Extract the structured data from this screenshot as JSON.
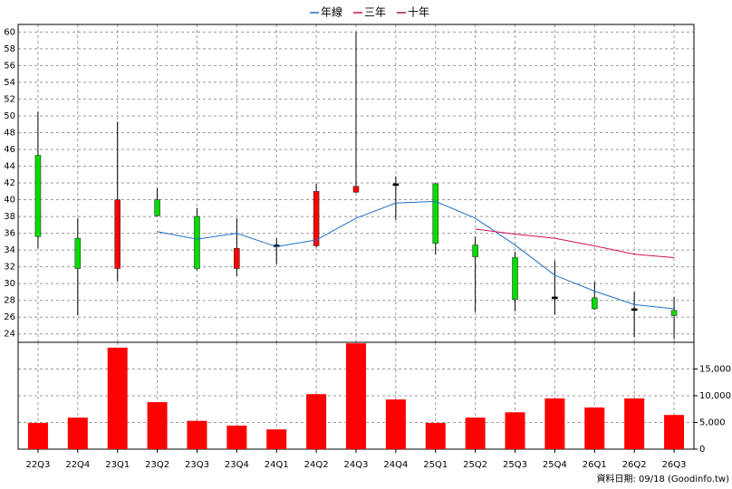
{
  "chart_data": [
    {
      "type": "candlestick",
      "categories": [
        "22Q3",
        "22Q4",
        "23Q1",
        "23Q2",
        "23Q3",
        "23Q4",
        "24Q1",
        "24Q2",
        "24Q3",
        "24Q4",
        "25Q1",
        "25Q2",
        "25Q3",
        "25Q4",
        "26Q1",
        "26Q2",
        "26Q3"
      ],
      "open": [
        45.3,
        35.4,
        31.8,
        40.0,
        38.0,
        31.8,
        34.5,
        34.5,
        40.9,
        41.8,
        41.9,
        34.6,
        33.1,
        28.3,
        28.3,
        26.9,
        26.8
      ],
      "high": [
        50.5,
        37.8,
        49.3,
        41.4,
        39.0,
        37.8,
        35.4,
        41.9,
        60.0,
        42.8,
        42.0,
        35.6,
        33.8,
        32.7,
        30.2,
        29.0,
        28.4
      ],
      "low": [
        34.2,
        26.2,
        30.3,
        38.0,
        31.6,
        30.9,
        32.3,
        34.3,
        40.8,
        37.6,
        33.5,
        26.6,
        26.7,
        26.3,
        26.9,
        23.6,
        23.4
      ],
      "close": [
        35.6,
        31.8,
        40.0,
        38.1,
        31.8,
        34.2,
        34.5,
        41.0,
        41.6,
        41.8,
        34.8,
        33.2,
        28.1,
        28.3,
        27.0,
        26.9,
        26.2
      ],
      "up_color": "#ff0000",
      "down_color": "#00dd00",
      "flat_color": "#000000",
      "series": [
        {
          "name": "年線",
          "color": "#1f6fc8",
          "values": [
            null,
            null,
            null,
            36.2,
            35.3,
            36.0,
            34.4,
            35.2,
            37.8,
            39.6,
            39.8,
            37.8,
            34.6,
            31.0,
            29.1,
            27.5,
            27.0
          ]
        },
        {
          "name": "三年",
          "color": "#d0105a",
          "values": [
            null,
            null,
            null,
            null,
            null,
            null,
            null,
            null,
            null,
            null,
            null,
            36.5,
            35.9,
            35.4,
            34.5,
            33.5,
            33.1
          ]
        },
        {
          "name": "十年",
          "color": "#9a1a60",
          "values": [
            null,
            null,
            null,
            null,
            null,
            null,
            null,
            null,
            null,
            null,
            null,
            null,
            null,
            null,
            null,
            null,
            null
          ]
        }
      ],
      "ylim": [
        23,
        60.9
      ],
      "yticks": [
        24,
        26,
        28,
        30,
        32,
        34,
        36,
        38,
        40,
        42,
        44,
        46,
        48,
        50,
        52,
        54,
        56,
        58,
        60
      ],
      "grid": true
    },
    {
      "type": "bar",
      "values": [
        4900,
        5900,
        19000,
        8800,
        5300,
        4400,
        3700,
        10300,
        19800,
        9300,
        4900,
        5900,
        6900,
        9500,
        7800,
        9500,
        6400
      ],
      "color": "#ff0000",
      "ylim": [
        0,
        20000
      ],
      "yticks": [
        0,
        {
          "value": 5000,
          "label": "5,000"
        },
        {
          "value": 10000,
          "label": "10,000"
        },
        {
          "value": 15000,
          "label": "15,000"
        }
      ],
      "grid": true
    }
  ],
  "source": "資料日期: 09/18 (Goodinfo.tw)"
}
